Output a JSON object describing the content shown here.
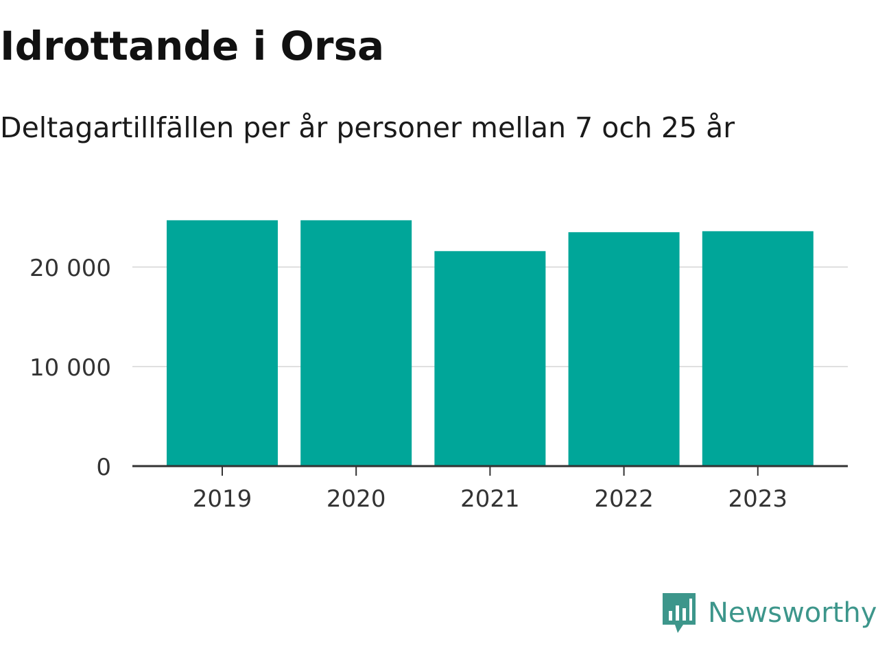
{
  "title": "Idrottande i Orsa",
  "subtitle": "Deltagartillfällen per år personer mellan 7 och 25 år",
  "brand": {
    "name": "Newsworthy",
    "icon": "bar-chart-speech-bubble-icon",
    "color": "#3d968b"
  },
  "colors": {
    "bar": "#00a699",
    "grid": "#e0e0e0",
    "axis": "#333333",
    "text": "#333333"
  },
  "chart_data": {
    "type": "bar",
    "categories": [
      "2019",
      "2020",
      "2021",
      "2022",
      "2023"
    ],
    "values": [
      24700,
      24700,
      21600,
      23500,
      23600
    ],
    "ylim": [
      0,
      27000
    ],
    "yticks": [
      0,
      10000,
      20000
    ],
    "ytick_labels": [
      "0",
      "10 000",
      "20 000"
    ],
    "grid": true,
    "legend": "none",
    "xlabel": "",
    "ylabel": ""
  }
}
